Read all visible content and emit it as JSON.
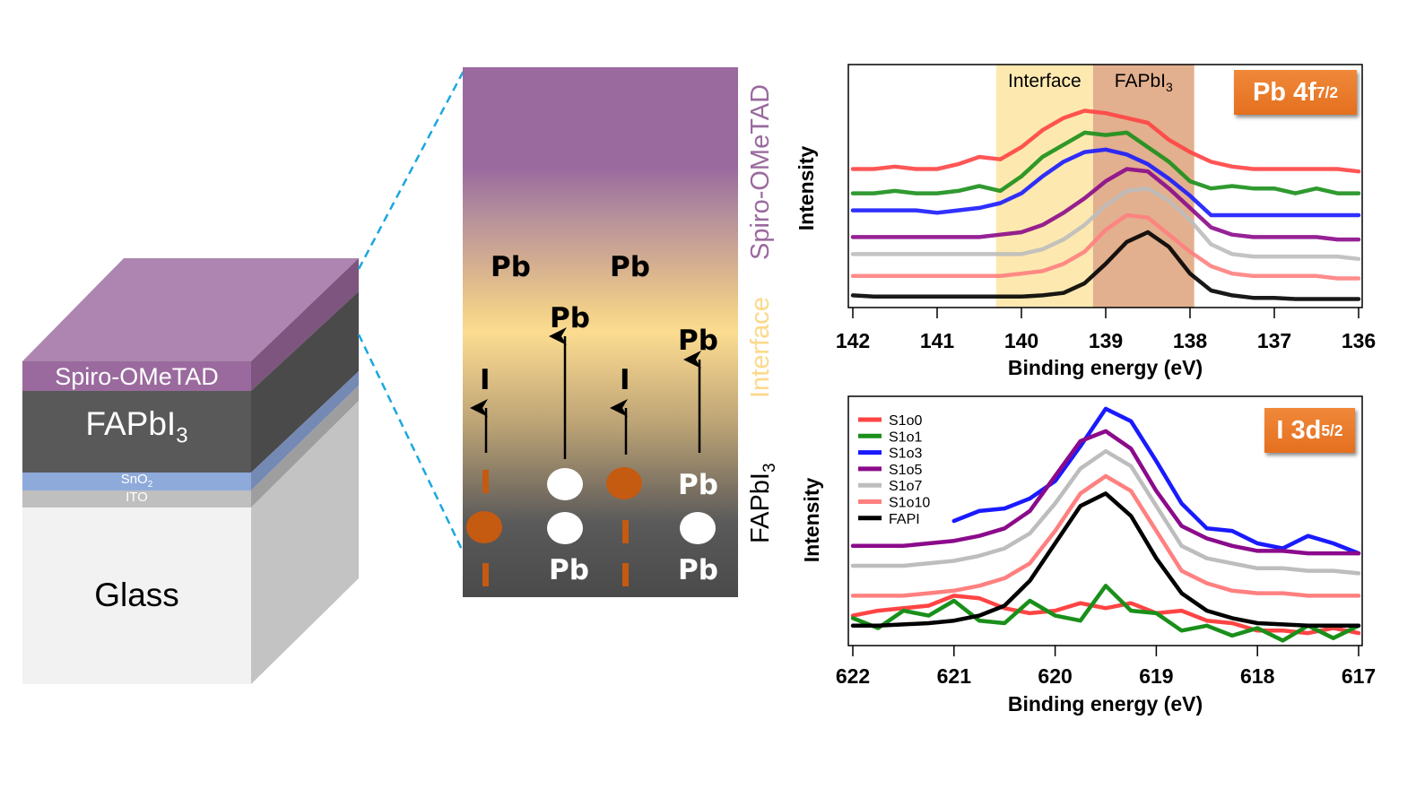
{
  "device_stack": {
    "layers": [
      {
        "name": "Spiro-OMeTAD",
        "color": "#9a6a9e",
        "top_color": "#ad85b0",
        "side_color": "#7d557f"
      },
      {
        "name": "FAPbI3",
        "label_main": "FAPbI",
        "label_sub": "3",
        "color": "#595959",
        "side_color": "#4a4a4a"
      },
      {
        "name": "SnO2",
        "label_main": "SnO",
        "label_sub": "2",
        "color": "#8eaadb",
        "side_color": "#7589b5"
      },
      {
        "name": "ITO",
        "color": "#bfbfbf",
        "side_color": "#9e9e9e"
      },
      {
        "name": "Glass",
        "color": "#f2f2f2",
        "side_color": "#c3c3c3"
      }
    ],
    "zoom_line_color": "#1aa7e0"
  },
  "zoom_panel": {
    "side_labels": {
      "spiro": {
        "text": "Spiro-OMeTAD",
        "color": "#9a6a9e"
      },
      "interface": {
        "text": "Interface",
        "color": "#fbd98a"
      },
      "fapbi3": {
        "main": "FAPbI",
        "sub": "3",
        "color": "#000000"
      }
    },
    "migrated_labels": [
      "Pb",
      "Pb",
      "Pb",
      "Pb",
      "I",
      "I"
    ],
    "lattice_labels": [
      "Pb",
      "Pb",
      "Pb"
    ],
    "ion_color": "#c55a11"
  },
  "chart_data": [
    {
      "type": "line",
      "title": "Pb 4f7/2",
      "title_main": "Pb 4f",
      "title_sub": "7/2",
      "xlabel": "Binding energy (eV)",
      "ylabel": "Intensity",
      "xlim": [
        142,
        136
      ],
      "ylim": [
        0,
        100
      ],
      "xticks": [
        142,
        141,
        140,
        139,
        138,
        137,
        136
      ],
      "grid": false,
      "regions": [
        {
          "label": "Interface",
          "x_from": 140.3,
          "x_to": 139.15,
          "color": "#fde9b0"
        },
        {
          "label": "FAPbI3",
          "label_main": "FAPbI",
          "label_sub": "3",
          "x_from": 139.15,
          "x_to": 137.95,
          "color": "#e2b08e"
        }
      ],
      "x": [
        142,
        141.75,
        141.5,
        141.25,
        141,
        140.75,
        140.5,
        140.25,
        140,
        139.75,
        139.5,
        139.25,
        139,
        138.75,
        138.5,
        138.25,
        138,
        137.75,
        137.5,
        137.25,
        137,
        136.75,
        136.5,
        136.25,
        136
      ],
      "series": [
        {
          "name": "S1o0",
          "color": "#ff4444",
          "values": [
            57,
            57,
            58,
            57,
            57,
            59,
            62,
            61,
            66,
            73,
            78,
            81,
            80,
            78,
            76,
            69,
            64,
            60,
            58,
            57,
            57,
            57,
            57,
            57,
            56
          ]
        },
        {
          "name": "S1o1",
          "color": "#1a8f1a",
          "values": [
            47,
            47,
            48,
            47,
            47,
            48,
            50,
            48,
            54,
            62,
            67,
            72,
            71,
            72,
            66,
            60,
            52,
            49,
            50,
            49,
            49,
            47,
            49,
            47,
            47
          ]
        },
        {
          "name": "S1o3",
          "color": "#1a1aff",
          "values": [
            40,
            40,
            40,
            40,
            39,
            40,
            41,
            43,
            47,
            54,
            60,
            64,
            65,
            63,
            59,
            53,
            46,
            38,
            38,
            38,
            38,
            38,
            38,
            38,
            38
          ]
        },
        {
          "name": "S1o5",
          "color": "#8b0a8b",
          "values": [
            29,
            29,
            29,
            29,
            29,
            29,
            29,
            30,
            31,
            34,
            39,
            45,
            52,
            57,
            56,
            49,
            41,
            33,
            30,
            29,
            29,
            29,
            29,
            28,
            28
          ]
        },
        {
          "name": "S1o7",
          "color": "#bdbdbd",
          "values": [
            22,
            22,
            22,
            22,
            22,
            22,
            22,
            22,
            22,
            24,
            28,
            34,
            42,
            48,
            49,
            44,
            36,
            26,
            22,
            21,
            21,
            21,
            21,
            21,
            20
          ]
        },
        {
          "name": "S1o10",
          "color": "#ff8080",
          "values": [
            13,
            13,
            13,
            13,
            13,
            13,
            13,
            13,
            14,
            15,
            18,
            23,
            32,
            38,
            37,
            30,
            23,
            17,
            14,
            13,
            13,
            13,
            13,
            12,
            12
          ]
        },
        {
          "name": "FAPI",
          "color": "#000000",
          "values": [
            5,
            4.5,
            4.5,
            4.5,
            4.5,
            4.5,
            4.5,
            4.5,
            4.5,
            5,
            6,
            10,
            18,
            27,
            31,
            25,
            14,
            7,
            5,
            4,
            4,
            3.5,
            3.5,
            3.5,
            3.5
          ]
        }
      ]
    },
    {
      "type": "line",
      "title": "I 3d5/2",
      "title_main": "I 3d",
      "title_sub": "5/2",
      "xlabel": "Binding energy (eV)",
      "ylabel": "Intensity",
      "xlim": [
        622,
        617
      ],
      "ylim": [
        0,
        100
      ],
      "xticks": [
        622,
        621,
        620,
        619,
        618,
        617
      ],
      "grid": false,
      "legend": {
        "placement": "top-left",
        "entries": [
          "S1o0",
          "S1o1",
          "S1o3",
          "S1o5",
          "S1o7",
          "S1o10",
          "FAPI"
        ]
      },
      "x": [
        622,
        621.75,
        621.5,
        621.25,
        621,
        620.75,
        620.5,
        620.25,
        620,
        619.75,
        619.5,
        619.25,
        619,
        618.75,
        618.5,
        618.25,
        618,
        617.75,
        617.5,
        617.25,
        617
      ],
      "series": [
        {
          "name": "S1o0",
          "color": "#ff4444",
          "values": [
            12,
            14,
            15,
            16,
            20,
            19,
            15,
            13,
            14,
            17,
            15,
            17,
            13,
            14,
            10,
            9,
            6,
            6,
            5,
            7,
            5
          ]
        },
        {
          "name": "S1o1",
          "color": "#1a8f1a",
          "values": [
            11,
            7,
            14,
            12,
            18,
            10,
            9,
            18,
            12,
            10,
            24,
            14,
            13,
            6,
            8,
            4,
            7,
            2,
            8,
            3,
            8
          ]
        },
        {
          "name": "S1o3",
          "color": "#1a1aff",
          "values": [
            null,
            null,
            null,
            null,
            50,
            54,
            55,
            59,
            66,
            80,
            95,
            90,
            74,
            57,
            47,
            46,
            41,
            39,
            44,
            41,
            37
          ]
        },
        {
          "name": "S1o5",
          "color": "#8b0a8b",
          "values": [
            40,
            40,
            40,
            41,
            42,
            44,
            47,
            54,
            68,
            82,
            86,
            79,
            62,
            48,
            43,
            40,
            38,
            38,
            37,
            37,
            37
          ]
        },
        {
          "name": "S1o7",
          "color": "#bdbdbd",
          "values": [
            32,
            32,
            32,
            33,
            34,
            36,
            39,
            45,
            57,
            71,
            78,
            72,
            56,
            40,
            35,
            33,
            31,
            31,
            30,
            30,
            29
          ]
        },
        {
          "name": "S1o10",
          "color": "#ff8080",
          "values": [
            20,
            20,
            20,
            21,
            22,
            24,
            27,
            33,
            46,
            61,
            68,
            62,
            46,
            30,
            25,
            22,
            21,
            21,
            20,
            20,
            20
          ]
        },
        {
          "name": "FAPI",
          "color": "#000000",
          "values": [
            8,
            8,
            8.5,
            9,
            10,
            12,
            16,
            26,
            41,
            56,
            61,
            52,
            35,
            21,
            14,
            11,
            9,
            8.5,
            8,
            8,
            8
          ]
        }
      ]
    }
  ]
}
